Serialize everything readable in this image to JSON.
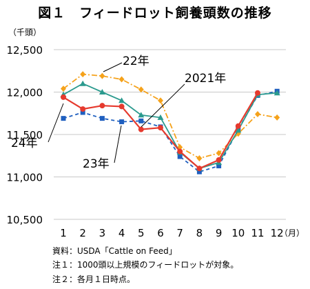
{
  "chart_data": {
    "type": "line",
    "title": "図１　フィードロット飼養頭数の推移",
    "ylabel": "（千頭）",
    "xunit": "（月）",
    "categories": [
      "1",
      "2",
      "3",
      "4",
      "5",
      "6",
      "7",
      "8",
      "9",
      "10",
      "11",
      "12"
    ],
    "ylim": [
      10500,
      12500
    ],
    "yticks": [
      10500,
      11000,
      11500,
      12000,
      12500
    ],
    "ytick_labels": [
      "10,500",
      "11,000",
      "11,500",
      "12,000",
      "12,500"
    ],
    "grid": true,
    "series": [
      {
        "name": "2021年",
        "color": "#1f5fbf",
        "style": "dashed",
        "marker": "square",
        "values": [
          11690,
          11760,
          11690,
          11650,
          11660,
          11590,
          11240,
          11060,
          11130,
          11560,
          11960,
          12010
        ]
      },
      {
        "name": "22年",
        "color": "#f5a21b",
        "style": "dashdot",
        "marker": "diamond",
        "values": [
          12040,
          12210,
          12190,
          12150,
          12030,
          11900,
          11350,
          11220,
          11280,
          11510,
          11740,
          11700
        ]
      },
      {
        "name": "23年",
        "color": "#2b9a8e",
        "style": "solid",
        "marker": "triangle",
        "values": [
          11970,
          12100,
          12000,
          11900,
          11730,
          11700,
          11290,
          11100,
          11170,
          11550,
          11970,
          11990
        ]
      },
      {
        "name": "24年",
        "color": "#e63a2e",
        "style": "solid",
        "marker": "circle",
        "values": [
          11940,
          11800,
          11840,
          11830,
          11560,
          11580,
          11300,
          11100,
          11200,
          11600,
          11990,
          null
        ]
      }
    ],
    "annotations": [
      "22年",
      "2021年",
      "24年",
      "23年"
    ]
  },
  "notes": [
    "資料：USDA「Cattle on Feed」",
    "注１：1000頭以上規模のフィードロットが対象。",
    "注２：各月１日時点。"
  ]
}
